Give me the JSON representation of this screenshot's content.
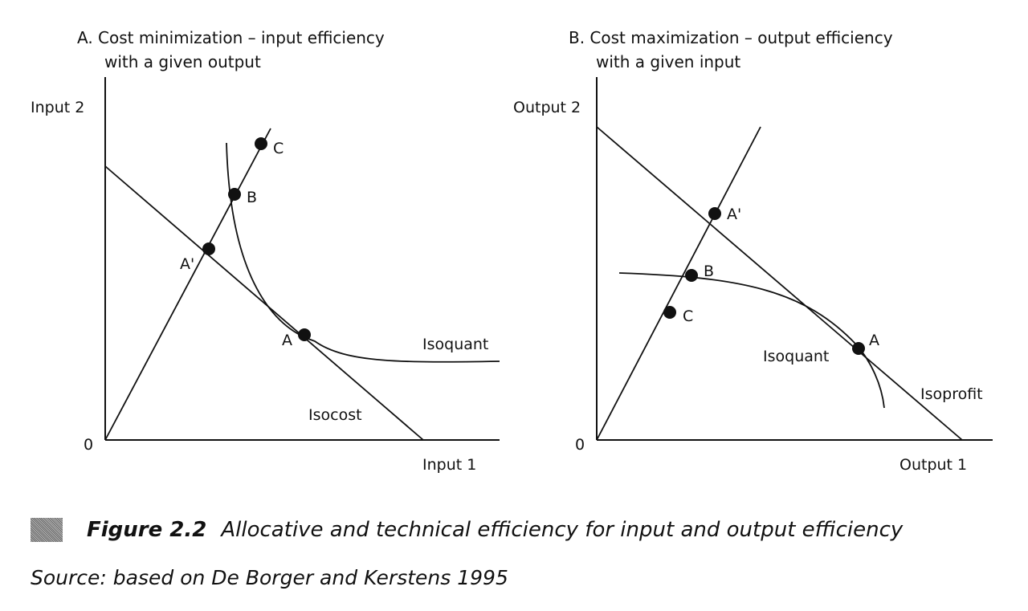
{
  "panel_a": {
    "title_line1": "A. Cost minimization – input efficiency",
    "title_line2": "with a given output",
    "y_axis_label": "Input 2",
    "x_axis_label": "Input 1",
    "origin_label": "0",
    "curve_label_isoquant": "Isoquant",
    "curve_label_isocost": "Isocost",
    "points": [
      {
        "id": "A",
        "label": "A"
      },
      {
        "id": "A-prime",
        "label": "A'"
      },
      {
        "id": "B",
        "label": "B"
      },
      {
        "id": "C",
        "label": "C"
      }
    ]
  },
  "panel_b": {
    "title_line1": "B. Cost maximization – output efficiency",
    "title_line2": "with a given input",
    "y_axis_label": "Output 2",
    "x_axis_label": "Output 1",
    "origin_label": "0",
    "curve_label_isoquant": "Isoquant",
    "curve_label_isoprofit": "Isoprofit",
    "points": [
      {
        "id": "A",
        "label": "A"
      },
      {
        "id": "A-prime",
        "label": "A'"
      },
      {
        "id": "B",
        "label": "B"
      },
      {
        "id": "C",
        "label": "C"
      }
    ]
  },
  "caption": {
    "figure_number": "Figure 2.2",
    "title": "Allocative and technical efficiency for input and output efficiency",
    "source": "Source: based on De Borger and Kerstens 1995"
  },
  "colors": {
    "ink": "#111111",
    "paper": "#ffffff",
    "caption_mark": "#8a8a8a"
  },
  "icons": {
    "caption_mark": "shaded-square"
  }
}
